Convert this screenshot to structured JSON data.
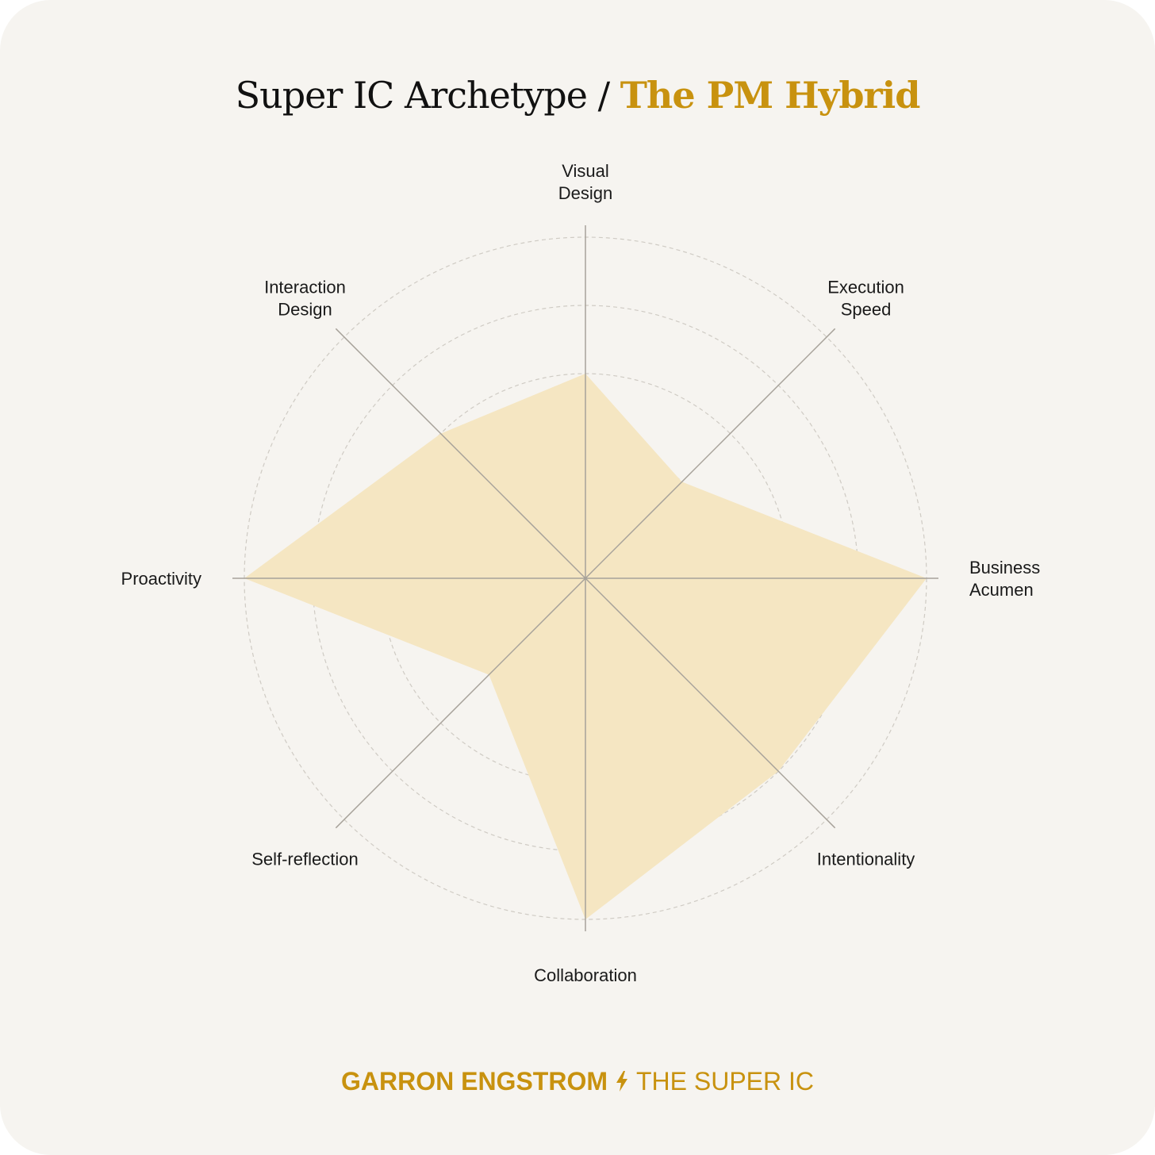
{
  "title": {
    "prefix": "Super IC Archetype / ",
    "accent": "The PM Hybrid"
  },
  "colors": {
    "background": "#f6f4f0",
    "accent": "#c8920f",
    "fill": "#f5e6c2",
    "axis": "#a7a29a",
    "grid": "#cfcbc4"
  },
  "chart_data": {
    "type": "radar",
    "title": "Super IC Archetype / The PM Hybrid",
    "axes": [
      {
        "label_lines": [
          "Visual",
          "Design"
        ]
      },
      {
        "label_lines": [
          "Execution",
          "Speed"
        ]
      },
      {
        "label_lines": [
          "Business",
          "Acumen"
        ]
      },
      {
        "label_lines": [
          "Intentionality"
        ]
      },
      {
        "label_lines": [
          "Collaboration"
        ]
      },
      {
        "label_lines": [
          "Self-reflection"
        ]
      },
      {
        "label_lines": [
          "Proactivity"
        ]
      },
      {
        "label_lines": [
          "Interaction",
          "Design"
        ]
      }
    ],
    "values": [
      3,
      2,
      5,
      4,
      5,
      2,
      5,
      3
    ],
    "range": [
      0,
      5
    ],
    "rings": 5,
    "grid": true
  },
  "footer": {
    "author": "GARRON ENGSTROM",
    "icon": "lightning-bolt-icon",
    "publication": "THE SUPER IC"
  }
}
